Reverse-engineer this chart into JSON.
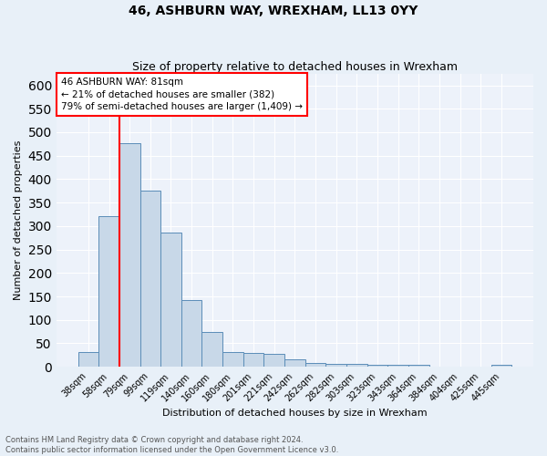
{
  "title": "46, ASHBURN WAY, WREXHAM, LL13 0YY",
  "subtitle": "Size of property relative to detached houses in Wrexham",
  "xlabel": "Distribution of detached houses by size in Wrexham",
  "ylabel": "Number of detached properties",
  "bar_labels": [
    "38sqm",
    "58sqm",
    "79sqm",
    "99sqm",
    "119sqm",
    "140sqm",
    "160sqm",
    "180sqm",
    "201sqm",
    "221sqm",
    "242sqm",
    "262sqm",
    "282sqm",
    "303sqm",
    "323sqm",
    "343sqm",
    "364sqm",
    "384sqm",
    "404sqm",
    "425sqm",
    "445sqm"
  ],
  "bar_values": [
    32,
    322,
    476,
    375,
    287,
    142,
    75,
    31,
    30,
    28,
    15,
    8,
    7,
    6,
    5,
    4,
    5,
    0,
    0,
    0,
    5
  ],
  "bar_color": "#c8d8e8",
  "bar_edge_color": "#5b8db8",
  "vline_color": "red",
  "annotation_text": "46 ASHBURN WAY: 81sqm\n← 21% of detached houses are smaller (382)\n79% of semi-detached houses are larger (1,409) →",
  "annotation_box_facecolor": "white",
  "annotation_box_edgecolor": "red",
  "ylim": [
    0,
    625
  ],
  "yticks": [
    0,
    50,
    100,
    150,
    200,
    250,
    300,
    350,
    400,
    450,
    500,
    550,
    600
  ],
  "footnote": "Contains HM Land Registry data © Crown copyright and database right 2024.\nContains public sector information licensed under the Open Government Licence v3.0.",
  "bg_color": "#e8f0f8",
  "plot_bg_color": "#edf2fa",
  "title_fontsize": 10,
  "subtitle_fontsize": 9,
  "xlabel_fontsize": 8,
  "ylabel_fontsize": 8,
  "tick_fontsize": 7,
  "footnote_fontsize": 6
}
